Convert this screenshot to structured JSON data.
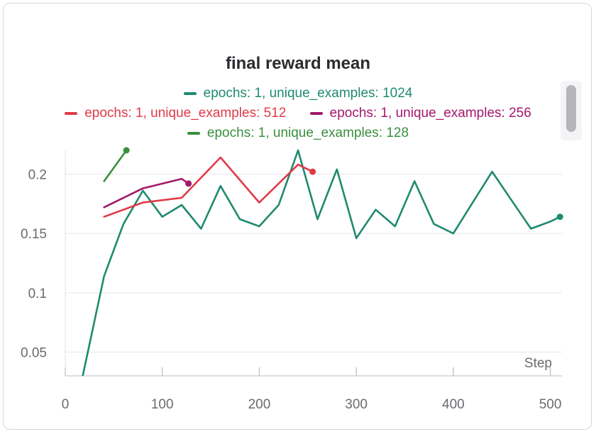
{
  "chart_data": {
    "type": "line",
    "title": "final reward mean",
    "xlabel": "Step",
    "ylabel": "",
    "xlim": [
      -5,
      512
    ],
    "ylim": [
      0.03,
      0.22
    ],
    "xticks": [
      0,
      100,
      200,
      300,
      400,
      500
    ],
    "yticks": [
      0.05,
      0.1,
      0.15,
      0.2
    ],
    "ytick_labels": [
      "0.05",
      "0.1",
      "0.15",
      "0.2"
    ],
    "grid": true,
    "legend_position": "top",
    "series": [
      {
        "name": "epochs: 1, unique_examples: 1024",
        "color": "#1f8a70",
        "x": [
          18,
          40,
          60,
          80,
          100,
          120,
          140,
          160,
          180,
          200,
          220,
          240,
          260,
          280,
          300,
          320,
          340,
          360,
          380,
          400,
          420,
          440,
          460,
          480,
          500,
          510
        ],
        "y": [
          0.03,
          0.114,
          0.158,
          0.186,
          0.164,
          0.174,
          0.154,
          0.19,
          0.162,
          0.156,
          0.174,
          0.22,
          0.162,
          0.204,
          0.146,
          0.17,
          0.156,
          0.194,
          0.158,
          0.15,
          0.176,
          0.202,
          0.178,
          0.154,
          0.16,
          0.164
        ]
      },
      {
        "name": "epochs: 1, unique_examples: 512",
        "color": "#e03a48",
        "x": [
          40,
          80,
          120,
          160,
          200,
          240,
          255
        ],
        "y": [
          0.164,
          0.176,
          0.18,
          0.214,
          0.176,
          0.208,
          0.202
        ]
      },
      {
        "name": "epochs: 1, unique_examples: 256",
        "color": "#a3196b",
        "x": [
          40,
          80,
          120,
          127
        ],
        "y": [
          0.172,
          0.188,
          0.196,
          0.192
        ]
      },
      {
        "name": "epochs: 1, unique_examples: 128",
        "color": "#3a8f3f",
        "x": [
          40,
          63
        ],
        "y": [
          0.194,
          0.22
        ]
      }
    ]
  }
}
